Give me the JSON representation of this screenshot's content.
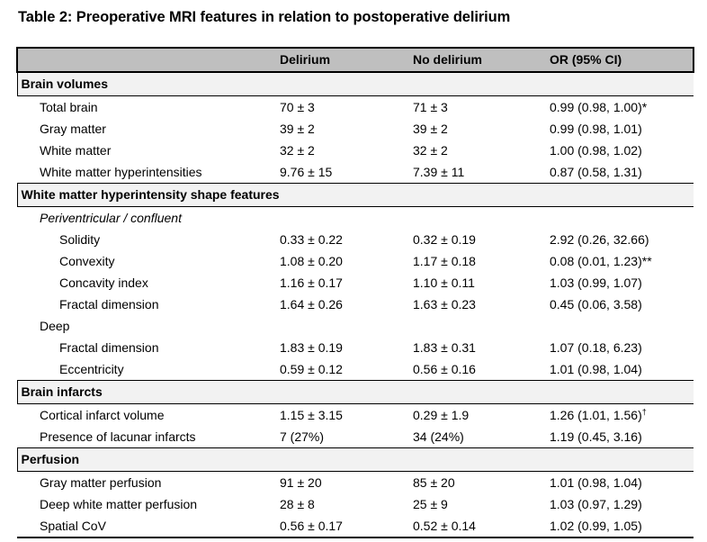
{
  "title": "Table 2: Preoperative MRI features in relation to postoperative delirium",
  "colors": {
    "header_bg": "#bfbfbf",
    "section_bg": "#f2f2f2",
    "border": "#000000",
    "text": "#000000"
  },
  "table": {
    "columns": [
      "",
      "Delirium",
      "No delirium",
      "OR (95% CI)"
    ],
    "sections": [
      {
        "header": "Brain volumes",
        "rows": [
          {
            "label": "Total brain",
            "indent": 1,
            "delirium": "70 ± 3",
            "no_delirium": "71 ± 3",
            "or_ci": "0.99 (0.98, 1.00)",
            "mark": "*",
            "mark_sup": false
          },
          {
            "label": "Gray matter",
            "indent": 1,
            "delirium": "39 ± 2",
            "no_delirium": "39 ± 2",
            "or_ci": "0.99 (0.98, 1.01)"
          },
          {
            "label": "White matter",
            "indent": 1,
            "delirium": "32 ± 2",
            "no_delirium": "32 ± 2",
            "or_ci": "1.00 (0.98, 1.02)"
          },
          {
            "label": "White matter hyperintensities",
            "indent": 1,
            "delirium": "9.76 ± 15",
            "no_delirium": "7.39 ± 11",
            "or_ci": "0.87 (0.58, 1.31)"
          }
        ]
      },
      {
        "header": "White matter hyperintensity shape features",
        "rows": [
          {
            "label": "Periventricular / confluent",
            "type": "subheader",
            "italic": true
          },
          {
            "label": "Solidity",
            "indent": 2,
            "delirium": "0.33 ± 0.22",
            "no_delirium": "0.32 ± 0.19",
            "or_ci": "2.92 (0.26, 32.66)"
          },
          {
            "label": "Convexity",
            "indent": 2,
            "delirium": "1.08 ± 0.20",
            "no_delirium": "1.17 ± 0.18",
            "or_ci": "0.08 (0.01, 1.23)",
            "mark": "**",
            "mark_sup": false
          },
          {
            "label": "Concavity index",
            "indent": 2,
            "delirium": "1.16 ± 0.17",
            "no_delirium": "1.10 ± 0.11",
            "or_ci": "1.03 (0.99, 1.07)"
          },
          {
            "label": "Fractal dimension",
            "indent": 2,
            "delirium": "1.64 ± 0.26",
            "no_delirium": "1.63 ± 0.23",
            "or_ci": "0.45 (0.06, 3.58)"
          },
          {
            "label": "Deep",
            "type": "subheader",
            "italic": false
          },
          {
            "label": "Fractal dimension",
            "indent": 2,
            "delirium": "1.83 ± 0.19",
            "no_delirium": "1.83 ± 0.31",
            "or_ci": "1.07 (0.18, 6.23)"
          },
          {
            "label": "Eccentricity",
            "indent": 2,
            "delirium": "0.59 ± 0.12",
            "no_delirium": "0.56 ± 0.16",
            "or_ci": "1.01 (0.98, 1.04)"
          }
        ]
      },
      {
        "header": "Brain infarcts",
        "rows": [
          {
            "label": "Cortical infarct volume",
            "indent": 1,
            "delirium": "1.15 ± 3.15",
            "no_delirium": "0.29 ± 1.9",
            "or_ci": "1.26 (1.01, 1.56)",
            "mark": "†",
            "mark_sup": true
          },
          {
            "label": "Presence of lacunar infarcts",
            "indent": 1,
            "delirium": "7 (27%)",
            "no_delirium": "34 (24%)",
            "or_ci": "1.19 (0.45, 3.16)"
          }
        ]
      },
      {
        "header": "Perfusion",
        "rows": [
          {
            "label": "Gray matter perfusion",
            "indent": 1,
            "delirium": "91 ± 20",
            "no_delirium": "85 ± 20",
            "or_ci": "1.01 (0.98, 1.04)"
          },
          {
            "label": "Deep white matter perfusion",
            "indent": 1,
            "delirium": "28 ± 8",
            "no_delirium": "25 ± 9",
            "or_ci": "1.03 (0.97, 1.29)"
          },
          {
            "label": "Spatial CoV",
            "indent": 1,
            "delirium": "0.56 ± 0.17",
            "no_delirium": "0.52 ± 0.14",
            "or_ci": "1.02 (0.99, 1.05)"
          }
        ]
      }
    ]
  }
}
